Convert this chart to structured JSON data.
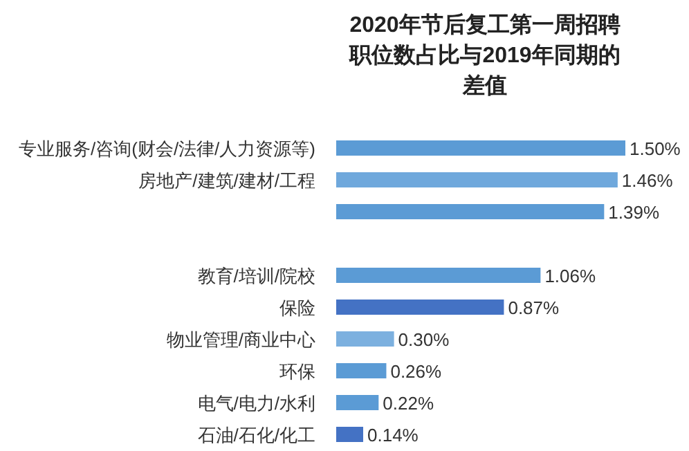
{
  "chart_data": {
    "type": "bar",
    "orientation": "horizontal",
    "title": "2020年节后复工第一周招聘职位数占比与2019年同期的差值",
    "categories": [
      "专业服务/咨询(财会/法律/人力资源等)",
      "房地产/建筑/建材/工程",
      null,
      null,
      "教育/培训/院校",
      "保险",
      "物业管理/商业中心",
      "环保",
      "电气/电力/水利",
      "石油/石化/化工"
    ],
    "values": [
      1.5,
      1.46,
      1.39,
      null,
      1.06,
      0.87,
      0.3,
      0.26,
      0.22,
      0.14
    ],
    "value_labels": [
      "1.50%",
      "1.46%",
      "1.39%",
      null,
      "1.06%",
      "0.87%",
      "0.30%",
      "0.26%",
      "0.22%",
      "0.14%"
    ],
    "colors": [
      "#5b9bd5",
      "#6fa8dc",
      "#5b9bd5",
      null,
      "#5b9bd5",
      "#4472c4",
      "#7cb0df",
      "#5b9bd5",
      "#5b9bd5",
      "#4472c4"
    ]
  }
}
